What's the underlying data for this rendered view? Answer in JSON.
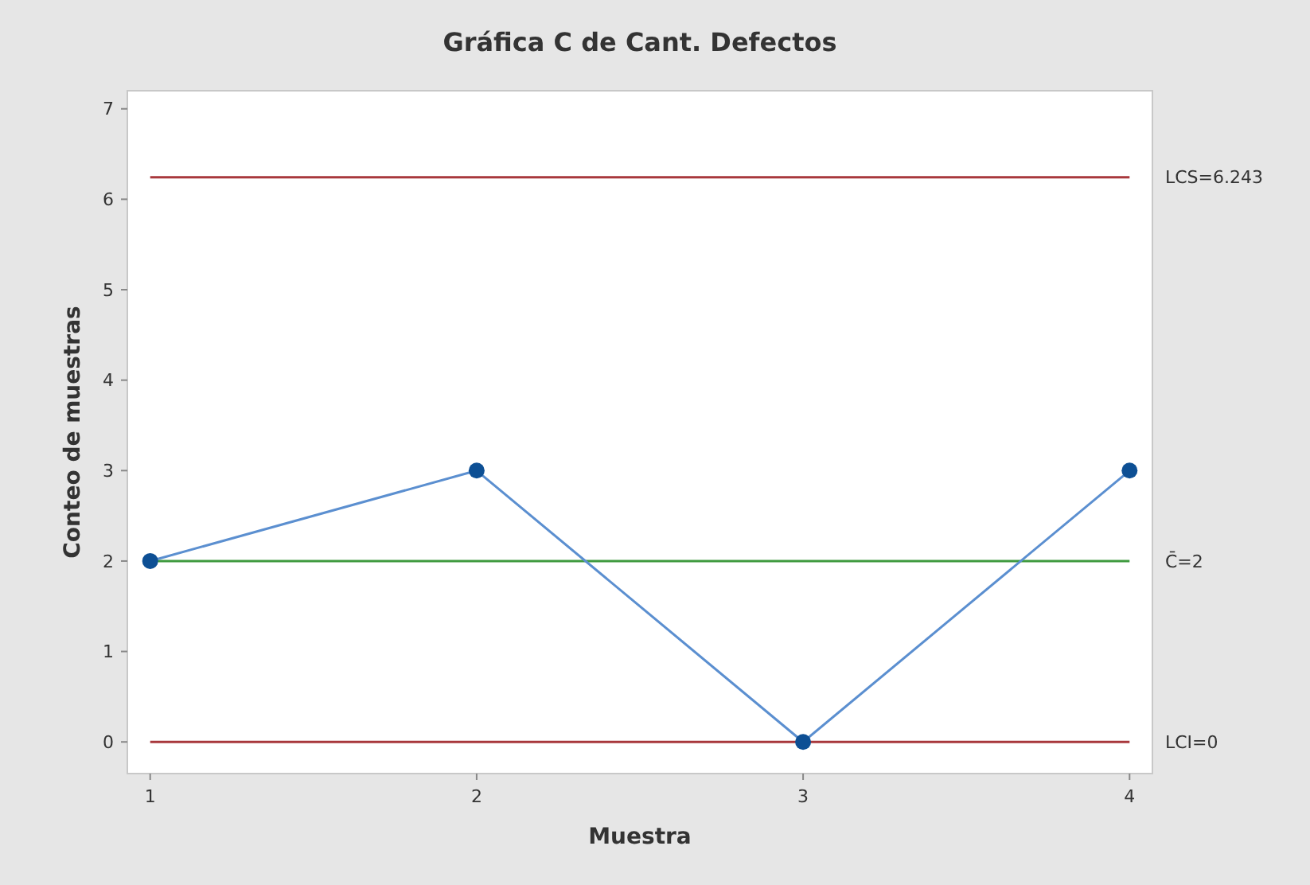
{
  "chart_data": {
    "type": "line",
    "title": "Gráfica C de Cant. Defectos",
    "xlabel": "Muestra",
    "ylabel": "Conteo de muestras",
    "x": [
      1,
      2,
      3,
      4
    ],
    "series": [
      {
        "color": "#5b8fd0",
        "values": [
          2,
          3,
          0,
          3
        ]
      }
    ],
    "marker": "circle",
    "xlim": [
      0.93,
      4.07
    ],
    "ylim": [
      -0.35,
      7.2
    ],
    "xticks": [
      1,
      2,
      3,
      4
    ],
    "yticks": [
      0,
      1,
      2,
      3,
      4,
      5,
      6,
      7
    ],
    "grid": false,
    "ref_lines": [
      {
        "axis": "y",
        "value": 6.243,
        "label": "LCS=6.243",
        "color": "#a8383c"
      },
      {
        "axis": "y",
        "value": 2,
        "label": "C̄=2",
        "color": "#3f9a3f"
      },
      {
        "axis": "y",
        "value": 0,
        "label": "LCI=0",
        "color": "#a8383c"
      }
    ]
  }
}
